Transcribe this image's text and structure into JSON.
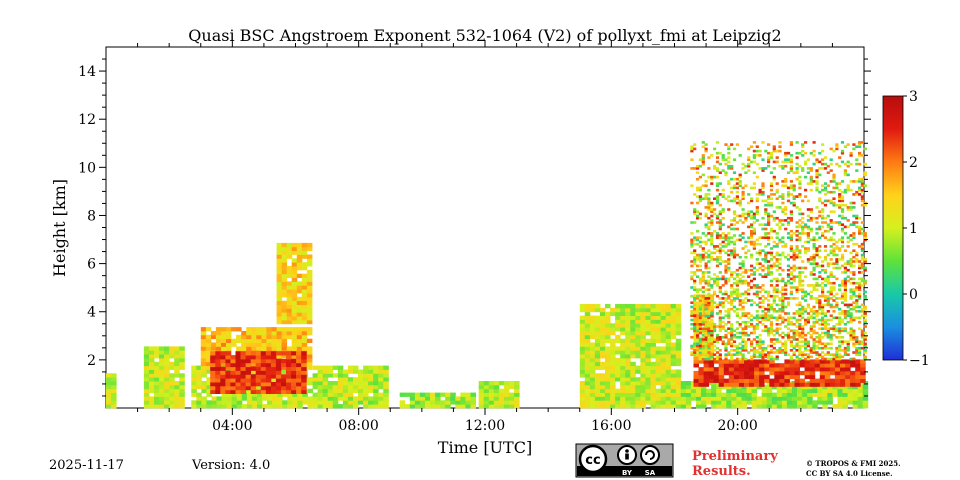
{
  "chart_data": {
    "type": "heatmap",
    "title": "Quasi BSC Angstroem Exponent 532-1064 (V2) of pollyxt_fmi at Leipzig2",
    "xlabel": "Time [UTC]",
    "ylabel": "Height [km]",
    "xlim": [
      0,
      24
    ],
    "ylim": [
      0,
      15
    ],
    "x_ticks": [
      {
        "value": 4,
        "label": "04:00"
      },
      {
        "value": 8,
        "label": "08:00"
      },
      {
        "value": 12,
        "label": "12:00"
      },
      {
        "value": 16,
        "label": "16:00"
      },
      {
        "value": 20,
        "label": "20:00"
      }
    ],
    "y_ticks": [
      {
        "value": 2,
        "label": "2"
      },
      {
        "value": 4,
        "label": "4"
      },
      {
        "value": 6,
        "label": "6"
      },
      {
        "value": 8,
        "label": "8"
      },
      {
        "value": 10,
        "label": "10"
      },
      {
        "value": 12,
        "label": "12"
      },
      {
        "value": 14,
        "label": "14"
      }
    ],
    "colorbar": {
      "min": -1,
      "max": 3,
      "ticks": [
        {
          "value": -1,
          "label": "−1"
        },
        {
          "value": 0,
          "label": "0"
        },
        {
          "value": 1,
          "label": "1"
        },
        {
          "value": 2,
          "label": "2"
        },
        {
          "value": 3,
          "label": "3"
        }
      ],
      "colors": [
        "#1f2fd6",
        "#1a8fe0",
        "#18c9a8",
        "#5fe23a",
        "#d6f01e",
        "#ffd21a",
        "#ff7a14",
        "#e01a10",
        "#b80d0d"
      ]
    },
    "regions": [
      {
        "name": "early-low-layer",
        "t": [
          0,
          0.2
        ],
        "h": [
          0,
          1.3
        ],
        "v": 0.9
      },
      {
        "name": "early-columns",
        "t": [
          1.2,
          2.4
        ],
        "h": [
          0,
          2.5
        ],
        "v": 1.0
      },
      {
        "name": "morning-boundary-layer",
        "t": [
          2.7,
          8.8
        ],
        "h": [
          0,
          1.6
        ],
        "v": 0.95
      },
      {
        "name": "morning-rising-aerosol",
        "t": [
          3.0,
          6.5
        ],
        "h": [
          1.6,
          3.3
        ],
        "v": 1.6
      },
      {
        "name": "morning-red-core",
        "t": [
          3.3,
          6.3
        ],
        "h": [
          0.6,
          2.2
        ],
        "v": 2.4
      },
      {
        "name": "plume-6km",
        "t": [
          5.4,
          6.4
        ],
        "h": [
          3.5,
          6.8
        ],
        "v": 1.4
      },
      {
        "name": "midday-thin-layer",
        "t": [
          9.3,
          11.6
        ],
        "h": [
          0,
          0.5
        ],
        "v": 0.8
      },
      {
        "name": "midday-patches",
        "t": [
          11.8,
          13.0
        ],
        "h": [
          0,
          1.0
        ],
        "v": 0.9
      },
      {
        "name": "afternoon-columns",
        "t": [
          15.0,
          18.2
        ],
        "h": [
          0,
          4.2
        ],
        "v": 1.0
      },
      {
        "name": "evening-boundary-layer",
        "t": [
          18.2,
          24
        ],
        "h": [
          0,
          1.0
        ],
        "v": 0.8
      },
      {
        "name": "evening-red-band",
        "t": [
          18.6,
          24
        ],
        "h": [
          0.9,
          2.0
        ],
        "v": 2.4
      },
      {
        "name": "evening-column",
        "t": [
          18.6,
          19.2
        ],
        "h": [
          2.0,
          4.6
        ],
        "v": 1.4
      },
      {
        "name": "evening-noise-aloft",
        "t": [
          18.5,
          24
        ],
        "h": [
          2.0,
          11.0
        ],
        "v": 1.3
      }
    ]
  },
  "footer": {
    "date": "2025-11-17",
    "version": "Version: 4.0",
    "preliminary": "Preliminary\nResults.",
    "preliminary_line1": "Preliminary",
    "preliminary_line2": "Results.",
    "license_line1": "© TROPOS & FMI 2025.",
    "license_line2": "CC BY SA 4.0 License.",
    "badge_cc": "cc",
    "badge_by": "BY",
    "badge_sa": "SA"
  }
}
